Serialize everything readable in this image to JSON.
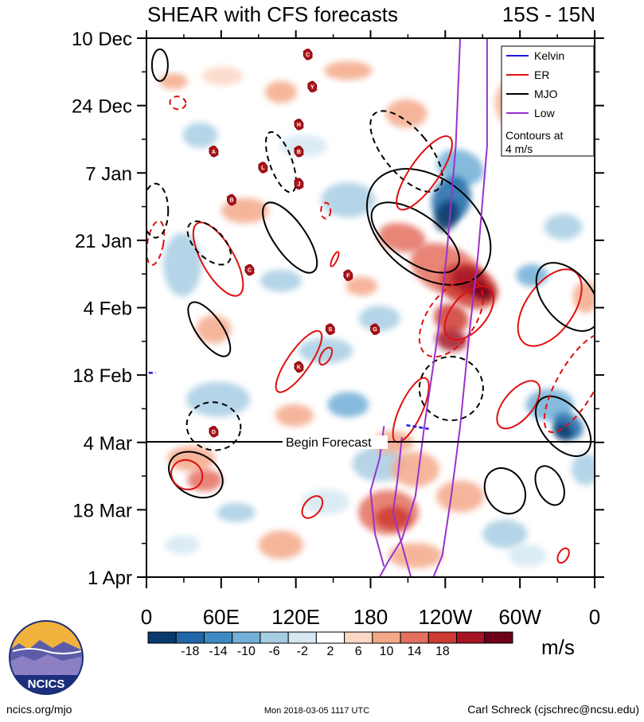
{
  "chart_data": {
    "type": "heatmap",
    "title": "SHEAR with CFS forecasts",
    "latitude_band": "15S - 15N",
    "x_tick_labels": [
      "0",
      "60E",
      "120E",
      "180",
      "120W",
      "60W",
      "0"
    ],
    "x_range_deg": [
      0,
      360
    ],
    "y_tick_labels": [
      "10 Dec",
      "24 Dec",
      "7 Jan",
      "21 Jan",
      "4 Feb",
      "18 Feb",
      "4 Mar",
      "18 Mar",
      "1 Apr"
    ],
    "forecast_line_label": "Begin Forecast",
    "forecast_start_index": 6,
    "units": "m/s",
    "colorbar": {
      "tick_labels": [
        "-18",
        "-14",
        "-10",
        "-6",
        "-2",
        "2",
        "6",
        "10",
        "14",
        "18"
      ],
      "colors": [
        "#083a6b",
        "#1f67a8",
        "#3d8bc4",
        "#71afd7",
        "#a7cde3",
        "#d6e8f2",
        "#ffffff",
        "#fbd8c6",
        "#f4a98a",
        "#e47060",
        "#cd3a33",
        "#a51425",
        "#6c0018"
      ]
    },
    "legend": [
      {
        "name": "Kelvin",
        "color": "#1a1adc"
      },
      {
        "name": "ER",
        "color": "#e01010"
      },
      {
        "name": "MJO",
        "color": "#000000"
      },
      {
        "name": "Low",
        "color": "#9932cc"
      }
    ],
    "contour_note": [
      "Contours at",
      "4 m/s"
    ],
    "storm_markers": [
      "C",
      "Y",
      "H",
      "A",
      "B",
      "L",
      "J",
      "B",
      "C",
      "F",
      "S",
      "G",
      "K",
      "D"
    ]
  },
  "footer": {
    "logo_text": "NCICS",
    "url": "ncics.org/mjo",
    "timestamp": "Mon 2018-03-05 1117 UTC",
    "author": "Carl Schreck (cjschrec@ncsu.edu)"
  }
}
